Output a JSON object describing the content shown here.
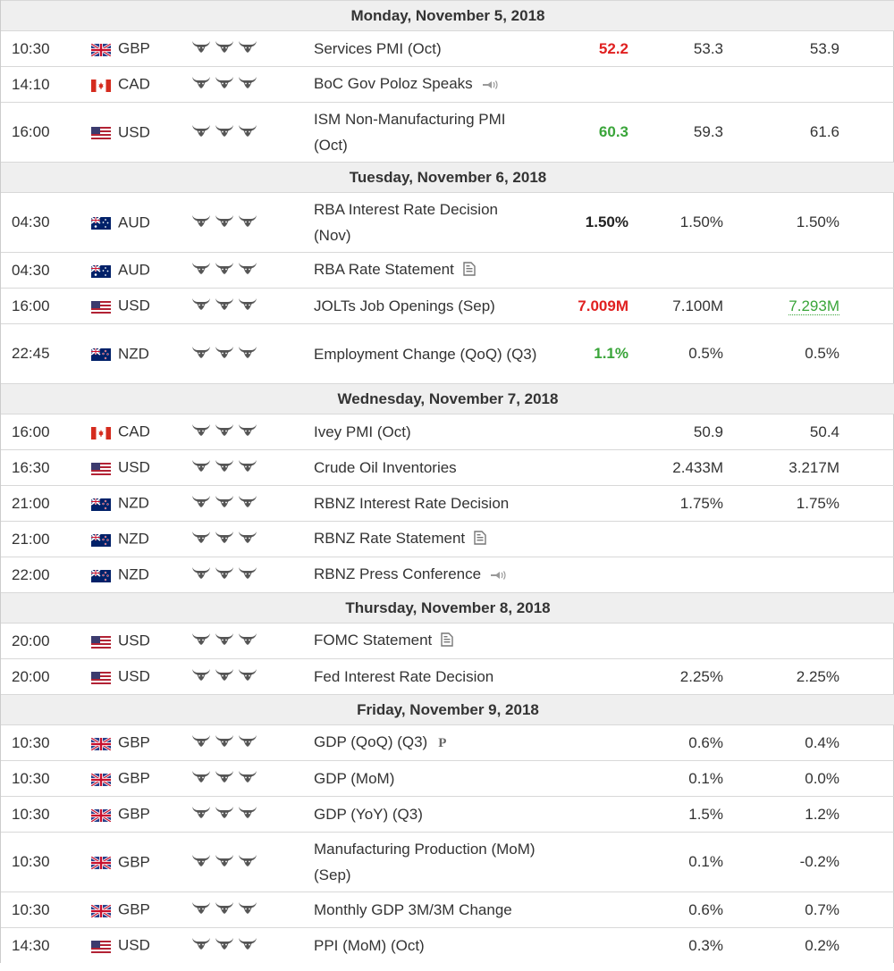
{
  "days": [
    {
      "label": "Monday, November 5, 2018",
      "events": [
        {
          "time": "10:30",
          "currency": "GBP",
          "flag": "gb",
          "event": "Services PMI (Oct)",
          "icon": "",
          "actual": "52.2",
          "actual_color": "red",
          "forecast": "53.3",
          "previous": "53.9",
          "previous_revised": false,
          "tall": false
        },
        {
          "time": "14:10",
          "currency": "CAD",
          "flag": "ca",
          "event": "BoC Gov Poloz Speaks",
          "icon": "speaker",
          "actual": "",
          "actual_color": "",
          "forecast": "",
          "previous": "",
          "previous_revised": false,
          "tall": false
        },
        {
          "time": "16:00",
          "currency": "USD",
          "flag": "us",
          "event": "ISM Non-Manufacturing PMI (Oct)",
          "icon": "",
          "actual": "60.3",
          "actual_color": "green",
          "forecast": "59.3",
          "previous": "61.6",
          "previous_revised": false,
          "tall": true
        }
      ]
    },
    {
      "label": "Tuesday, November 6, 2018",
      "events": [
        {
          "time": "04:30",
          "currency": "AUD",
          "flag": "au",
          "event": "RBA Interest Rate Decision (Nov)",
          "icon": "",
          "actual": "1.50%",
          "actual_color": "black",
          "forecast": "1.50%",
          "previous": "1.50%",
          "previous_revised": false,
          "tall": true
        },
        {
          "time": "04:30",
          "currency": "AUD",
          "flag": "au",
          "event": "RBA Rate Statement",
          "icon": "document",
          "actual": "",
          "actual_color": "",
          "forecast": "",
          "previous": "",
          "previous_revised": false,
          "tall": false
        },
        {
          "time": "16:00",
          "currency": "USD",
          "flag": "us",
          "event": "JOLTs Job Openings (Sep)",
          "icon": "",
          "actual": "7.009M",
          "actual_color": "red",
          "forecast": "7.100M",
          "previous": "7.293M",
          "previous_revised": true,
          "tall": false
        },
        {
          "time": "22:45",
          "currency": "NZD",
          "flag": "nz",
          "event": "Employment Change (QoQ) (Q3)",
          "icon": "",
          "actual": "1.1%",
          "actual_color": "green",
          "forecast": "0.5%",
          "previous": "0.5%",
          "previous_revised": false,
          "tall": true
        }
      ]
    },
    {
      "label": "Wednesday, November 7, 2018",
      "events": [
        {
          "time": "16:00",
          "currency": "CAD",
          "flag": "ca",
          "event": "Ivey PMI (Oct)",
          "icon": "",
          "actual": "",
          "actual_color": "",
          "forecast": "50.9",
          "previous": "50.4",
          "previous_revised": false,
          "tall": false
        },
        {
          "time": "16:30",
          "currency": "USD",
          "flag": "us",
          "event": "Crude Oil Inventories",
          "icon": "",
          "actual": "",
          "actual_color": "",
          "forecast": "2.433M",
          "previous": "3.217M",
          "previous_revised": false,
          "tall": false
        },
        {
          "time": "21:00",
          "currency": "NZD",
          "flag": "nz",
          "event": "RBNZ Interest Rate Decision",
          "icon": "",
          "actual": "",
          "actual_color": "",
          "forecast": "1.75%",
          "previous": "1.75%",
          "previous_revised": false,
          "tall": false
        },
        {
          "time": "21:00",
          "currency": "NZD",
          "flag": "nz",
          "event": "RBNZ Rate Statement",
          "icon": "document",
          "actual": "",
          "actual_color": "",
          "forecast": "",
          "previous": "",
          "previous_revised": false,
          "tall": false
        },
        {
          "time": "22:00",
          "currency": "NZD",
          "flag": "nz",
          "event": "RBNZ Press Conference",
          "icon": "speaker",
          "actual": "",
          "actual_color": "",
          "forecast": "",
          "previous": "",
          "previous_revised": false,
          "tall": false
        }
      ]
    },
    {
      "label": "Thursday, November 8, 2018",
      "events": [
        {
          "time": "20:00",
          "currency": "USD",
          "flag": "us",
          "event": "FOMC Statement",
          "icon": "document",
          "actual": "",
          "actual_color": "",
          "forecast": "",
          "previous": "",
          "previous_revised": false,
          "tall": false
        },
        {
          "time": "20:00",
          "currency": "USD",
          "flag": "us",
          "event": "Fed Interest Rate Decision",
          "icon": "",
          "actual": "",
          "actual_color": "",
          "forecast": "2.25%",
          "previous": "2.25%",
          "previous_revised": false,
          "tall": false
        }
      ]
    },
    {
      "label": "Friday, November 9, 2018",
      "events": [
        {
          "time": "10:30",
          "currency": "GBP",
          "flag": "gb",
          "event": "GDP (QoQ) (Q3)",
          "icon": "prelim",
          "icon_text": "P",
          "actual": "",
          "actual_color": "",
          "forecast": "0.6%",
          "previous": "0.4%",
          "previous_revised": false,
          "tall": false
        },
        {
          "time": "10:30",
          "currency": "GBP",
          "flag": "gb",
          "event": "GDP (MoM)",
          "icon": "",
          "actual": "",
          "actual_color": "",
          "forecast": "0.1%",
          "previous": "0.0%",
          "previous_revised": false,
          "tall": false
        },
        {
          "time": "10:30",
          "currency": "GBP",
          "flag": "gb",
          "event": "GDP (YoY) (Q3)",
          "icon": "",
          "actual": "",
          "actual_color": "",
          "forecast": "1.5%",
          "previous": "1.2%",
          "previous_revised": false,
          "tall": false
        },
        {
          "time": "10:30",
          "currency": "GBP",
          "flag": "gb",
          "event": "Manufacturing Production (MoM) (Sep)",
          "icon": "",
          "actual": "",
          "actual_color": "",
          "forecast": "0.1%",
          "previous": "-0.2%",
          "previous_revised": false,
          "tall": true
        },
        {
          "time": "10:30",
          "currency": "GBP",
          "flag": "gb",
          "event": "Monthly GDP 3M/3M Change",
          "icon": "",
          "actual": "",
          "actual_color": "",
          "forecast": "0.6%",
          "previous": "0.7%",
          "previous_revised": false,
          "tall": false
        },
        {
          "time": "14:30",
          "currency": "USD",
          "flag": "us",
          "event": "PPI (MoM) (Oct)",
          "icon": "",
          "actual": "",
          "actual_color": "",
          "forecast": "0.3%",
          "previous": "0.2%",
          "previous_revised": false,
          "tall": false
        }
      ]
    }
  ],
  "importance_icon": "bull-icon"
}
